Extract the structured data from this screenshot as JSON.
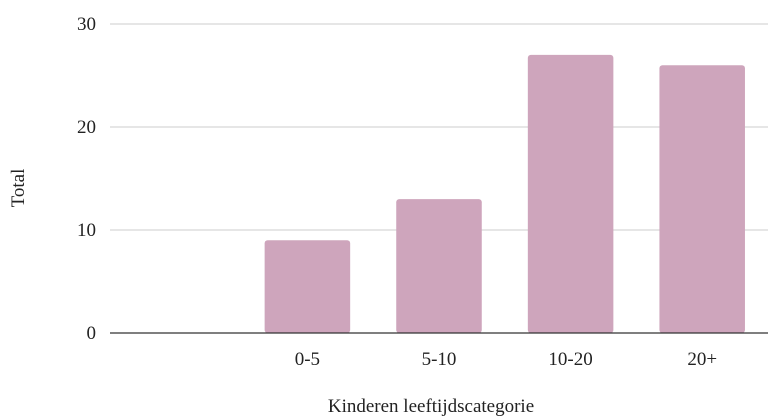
{
  "chart_data": {
    "type": "bar",
    "xlabel": "Kinderen leeftijdscategorie",
    "ylabel": "Total",
    "categories": [
      "",
      "0-5",
      "5-10",
      "10-20",
      "20+"
    ],
    "values": [
      0,
      9,
      13,
      27,
      26
    ],
    "ylim": [
      0,
      30
    ],
    "yticks": [
      0,
      10,
      20,
      30
    ],
    "grid": true,
    "bar_color": "#cea5bc",
    "legend": "none"
  }
}
